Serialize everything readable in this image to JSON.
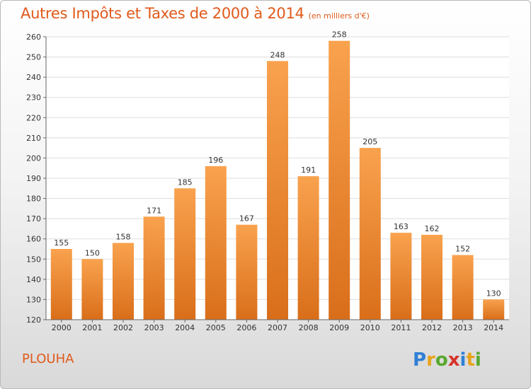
{
  "title": "Autres Impôts et Taxes de 2000 à 2014",
  "unit_note": "(en milliers d'€)",
  "commune": "PLOUHA",
  "logo_text": "Proxiti",
  "colors": {
    "bar_light": "#f9a24e",
    "bar_dark": "#d96e1a",
    "title": "#e05a1c",
    "grid": "#dddddd"
  },
  "chart_data": {
    "type": "bar",
    "title": "Autres Impôts et Taxes de 2000 à 2014",
    "xlabel": "",
    "ylabel": "",
    "categories": [
      "2000",
      "2001",
      "2002",
      "2003",
      "2004",
      "2005",
      "2006",
      "2007",
      "2008",
      "2009",
      "2010",
      "2011",
      "2012",
      "2013",
      "2014"
    ],
    "values": [
      155,
      150,
      158,
      171,
      185,
      196,
      167,
      248,
      191,
      258,
      205,
      163,
      162,
      152,
      130
    ],
    "ylim": [
      120,
      260
    ],
    "yticks": [
      120,
      130,
      140,
      150,
      160,
      170,
      180,
      190,
      200,
      210,
      220,
      230,
      240,
      250,
      260
    ],
    "grid": true,
    "data_labels": true
  }
}
